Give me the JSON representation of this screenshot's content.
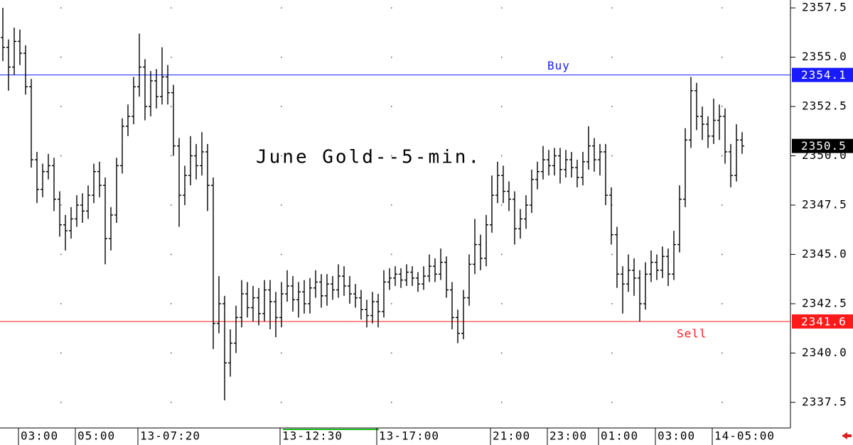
{
  "chart_data": {
    "type": "ohlc",
    "title": "June Gold--5-min.",
    "color": "#000000",
    "grid": true,
    "categories": [
      null,
      null,
      null,
      "03:00",
      null,
      null,
      null,
      null,
      null,
      null,
      null,
      null,
      null,
      "05:00",
      null,
      null,
      null,
      null,
      null,
      null,
      null,
      null,
      null,
      null,
      "13-07:20",
      null,
      null,
      null,
      null,
      null,
      null,
      null,
      null,
      null,
      null,
      null,
      null,
      null,
      null,
      null,
      null,
      null,
      null,
      null,
      null,
      null,
      null,
      null,
      null,
      "13-12:30",
      null,
      null,
      null,
      null,
      null,
      null,
      null,
      null,
      null,
      null,
      null,
      null,
      null,
      null,
      null,
      null,
      "13-17:00",
      null,
      null,
      null,
      null,
      null,
      null,
      null,
      null,
      null,
      null,
      null,
      null,
      null,
      null,
      null,
      null,
      null,
      null,
      null,
      "21:00",
      null,
      null,
      null,
      null,
      null,
      null,
      null,
      null,
      null,
      "23:00",
      null,
      null,
      null,
      null,
      null,
      null,
      null,
      null,
      "01:00",
      null,
      null,
      null,
      null,
      null,
      null,
      null,
      null,
      null,
      "03:00",
      null,
      null,
      null,
      null,
      null,
      null,
      null,
      null,
      null,
      "14-05:00",
      null,
      null,
      null,
      null,
      null
    ],
    "open": [
      2356.0,
      2355.5,
      2354.5,
      2355.8,
      2355.2,
      2353.5,
      2349.8,
      2348.3,
      2349.2,
      2349.5,
      2347.8,
      2346.5,
      2346.2,
      2346.8,
      2347.5,
      2347.2,
      2348.0,
      2349.2,
      2348.5,
      2345.8,
      2347.0,
      2349.5,
      2351.5,
      2352.0,
      2353.5,
      2354.5,
      2352.5,
      2353.8,
      2353.0,
      2354.0,
      2353.2,
      2350.5,
      2348.0,
      2349.0,
      2350.0,
      2349.5,
      2350.2,
      2348.5,
      2341.5,
      2342.5,
      2339.5,
      2340.5,
      2341.8,
      2343.0,
      2342.3,
      2342.8,
      2342.0,
      2343.2,
      2342.6,
      2341.8,
      2343.0,
      2343.4,
      2342.7,
      2343.1,
      2342.5,
      2343.3,
      2343.6,
      2342.9,
      2343.5,
      2343.2,
      2343.9,
      2343.4,
      2343.0,
      2342.8,
      2342.2,
      2341.9,
      2342.6,
      2342.1,
      2343.6,
      2343.8,
      2344.0,
      2343.7,
      2344.1,
      2343.8,
      2343.5,
      2343.9,
      2344.4,
      2344.0,
      2344.6,
      2343.2,
      2341.8,
      2341.0,
      2342.8,
      2344.5,
      2345.5,
      2344.8,
      2346.5,
      2348.0,
      2349.0,
      2348.2,
      2347.8,
      2346.3,
      2346.8,
      2347.5,
      2348.8,
      2349.2,
      2349.8,
      2349.5,
      2350.0,
      2349.3,
      2349.8,
      2349.4,
      2348.9,
      2349.7,
      2350.5,
      2349.8,
      2350.2,
      2348.0,
      2346.0,
      2344.0,
      2343.5,
      2344.2,
      2343.8,
      2342.5,
      2344.0,
      2344.6,
      2344.2,
      2344.9,
      2344.0,
      2345.5,
      2347.8,
      2350.8,
      2353.3,
      2352.0,
      2351.6,
      2351.0,
      2351.8,
      2352.0,
      2350.2,
      2349.0,
      2350.8
    ],
    "high": [
      2357.5,
      2355.9,
      2356.5,
      2356.4,
      2355.6,
      2353.9,
      2350.2,
      2349.6,
      2350.1,
      2349.9,
      2348.2,
      2347.0,
      2347.4,
      2348.0,
      2348.1,
      2348.5,
      2349.6,
      2349.7,
      2348.9,
      2347.4,
      2349.9,
      2351.9,
      2352.6,
      2354.0,
      2356.2,
      2354.9,
      2354.3,
      2354.4,
      2355.5,
      2354.6,
      2353.6,
      2350.9,
      2349.5,
      2351.0,
      2350.6,
      2351.2,
      2350.6,
      2348.9,
      2343.9,
      2342.9,
      2341.2,
      2342.4,
      2343.7,
      2343.6,
      2343.4,
      2343.3,
      2343.7,
      2343.7,
      2343.1,
      2343.6,
      2344.2,
      2343.9,
      2343.6,
      2343.7,
      2343.8,
      2344.2,
      2344.0,
      2344.0,
      2343.9,
      2344.5,
      2344.4,
      2343.9,
      2343.5,
      2343.2,
      2342.7,
      2343.1,
      2343.0,
      2344.2,
      2344.3,
      2344.4,
      2344.3,
      2344.5,
      2344.4,
      2344.1,
      2344.4,
      2345.0,
      2344.8,
      2345.3,
      2344.9,
      2343.6,
      2342.2,
      2343.2,
      2345.0,
      2346.8,
      2346.0,
      2347.0,
      2349.0,
      2349.7,
      2349.5,
      2348.7,
      2348.2,
      2347.3,
      2348.0,
      2349.3,
      2349.7,
      2350.5,
      2350.3,
      2350.4,
      2350.4,
      2350.3,
      2350.2,
      2349.8,
      2350.2,
      2351.5,
      2350.9,
      2350.6,
      2350.6,
      2348.4,
      2346.4,
      2344.4,
      2345.0,
      2344.8,
      2344.2,
      2344.6,
      2345.2,
      2345.0,
      2345.4,
      2345.3,
      2346.2,
      2348.5,
      2351.4,
      2354.0,
      2353.7,
      2352.5,
      2352.0,
      2352.9,
      2352.6,
      2352.4,
      2350.6,
      2351.6,
      2351.2
    ],
    "low": [
      2354.8,
      2353.3,
      2354.1,
      2354.6,
      2353.1,
      2349.4,
      2347.6,
      2347.9,
      2348.8,
      2347.2,
      2345.9,
      2345.2,
      2345.8,
      2346.4,
      2346.6,
      2346.8,
      2347.6,
      2347.9,
      2344.5,
      2345.2,
      2346.6,
      2349.1,
      2351.0,
      2351.6,
      2353.0,
      2351.8,
      2352.0,
      2352.4,
      2352.6,
      2352.6,
      2350.0,
      2346.4,
      2347.5,
      2348.5,
      2348.8,
      2349.0,
      2347.2,
      2340.2,
      2341.0,
      2337.6,
      2338.8,
      2340.0,
      2341.3,
      2341.8,
      2341.6,
      2341.4,
      2341.6,
      2341.2,
      2340.8,
      2341.3,
      2342.6,
      2342.1,
      2341.8,
      2342.0,
      2342.0,
      2342.8,
      2342.3,
      2342.4,
      2342.7,
      2342.8,
      2342.9,
      2342.5,
      2342.3,
      2341.7,
      2341.3,
      2341.5,
      2341.3,
      2341.8,
      2343.2,
      2343.4,
      2343.3,
      2343.4,
      2343.4,
      2343.1,
      2343.2,
      2343.6,
      2343.6,
      2343.7,
      2342.8,
      2341.2,
      2340.5,
      2340.7,
      2342.4,
      2344.0,
      2344.2,
      2344.4,
      2346.1,
      2347.6,
      2347.6,
      2347.2,
      2345.5,
      2345.8,
      2346.3,
      2347.1,
      2348.3,
      2348.8,
      2349.0,
      2349.0,
      2348.6,
      2348.9,
      2348.9,
      2348.4,
      2348.5,
      2349.3,
      2349.2,
      2349.0,
      2347.5,
      2345.5,
      2343.3,
      2342.0,
      2343.1,
      2342.9,
      2341.6,
      2342.2,
      2343.6,
      2343.7,
      2343.8,
      2343.4,
      2343.7,
      2345.1,
      2347.4,
      2350.4,
      2351.3,
      2350.8,
      2350.4,
      2350.6,
      2350.8,
      2349.6,
      2348.4,
      2348.7,
      2350.1
    ],
    "close": [
      2355.5,
      2354.5,
      2355.8,
      2355.2,
      2353.5,
      2349.8,
      2348.3,
      2349.2,
      2349.5,
      2347.8,
      2346.5,
      2346.2,
      2346.8,
      2347.5,
      2347.2,
      2348.0,
      2349.2,
      2348.5,
      2345.8,
      2347.0,
      2349.5,
      2351.5,
      2352.0,
      2353.5,
      2354.5,
      2352.5,
      2353.8,
      2353.0,
      2354.0,
      2353.2,
      2350.5,
      2348.0,
      2349.0,
      2350.0,
      2349.5,
      2350.2,
      2348.5,
      2341.5,
      2342.5,
      2339.5,
      2340.5,
      2341.8,
      2343.0,
      2342.3,
      2342.8,
      2342.0,
      2343.2,
      2342.6,
      2341.8,
      2343.0,
      2343.4,
      2342.7,
      2343.1,
      2342.5,
      2343.3,
      2343.6,
      2342.9,
      2343.5,
      2343.2,
      2343.9,
      2343.4,
      2343.0,
      2342.8,
      2342.2,
      2341.9,
      2342.6,
      2342.1,
      2343.6,
      2343.8,
      2344.0,
      2343.7,
      2344.1,
      2343.8,
      2343.5,
      2343.9,
      2344.4,
      2344.0,
      2344.6,
      2343.2,
      2341.8,
      2341.0,
      2342.8,
      2344.5,
      2345.5,
      2344.8,
      2346.5,
      2348.0,
      2349.0,
      2348.2,
      2347.8,
      2346.3,
      2346.8,
      2347.5,
      2348.8,
      2349.2,
      2349.8,
      2349.5,
      2350.0,
      2349.3,
      2349.8,
      2349.4,
      2348.9,
      2349.7,
      2350.5,
      2349.8,
      2350.2,
      2348.0,
      2346.0,
      2344.0,
      2343.5,
      2344.2,
      2343.8,
      2342.5,
      2344.0,
      2344.6,
      2344.2,
      2344.9,
      2344.0,
      2345.5,
      2347.8,
      2350.8,
      2353.3,
      2352.0,
      2351.6,
      2351.0,
      2351.8,
      2352.0,
      2350.2,
      2349.0,
      2350.8,
      2350.5
    ],
    "ylim": [
      2336.2,
      2357.9
    ],
    "yticks": [
      2337.5,
      {
        "value": 2340,
        "label": "2340.0"
      },
      2342.5,
      {
        "value": 2345,
        "label": "2345.0"
      },
      2347.5,
      {
        "value": 2350,
        "label": "2350.0"
      },
      2352.5,
      {
        "value": 2355,
        "label": "2355.0"
      },
      2357.5
    ],
    "levels": [
      {
        "name": "Buy",
        "value": 2354.1,
        "color": "#1a1aff"
      },
      {
        "name": "Sell",
        "value": 2341.6,
        "color": "#ff1a1a"
      }
    ]
  }
}
